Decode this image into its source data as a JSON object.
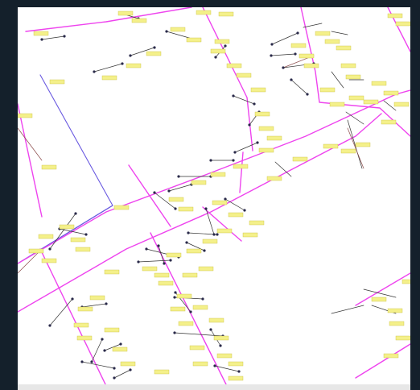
{
  "map": {
    "background_color": "#ffffff",
    "frame_color": "#14202b",
    "colors": {
      "main_line": "#ee44ee",
      "boundary": "#6a5ae0",
      "branch": "#333333",
      "spur": "#8a4a4a",
      "node": "#2a2a4a",
      "label_fill": "#f4f08a"
    },
    "label_text": "",
    "feature_counts": {
      "main_lines": 14,
      "boundary_lines": 2,
      "branch_lines": 46,
      "nodes": 74,
      "labels": 96
    }
  }
}
